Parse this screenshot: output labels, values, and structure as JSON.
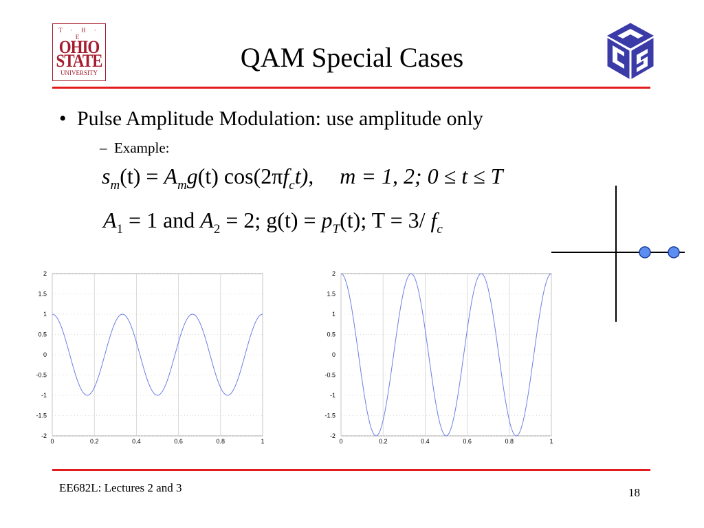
{
  "slide": {
    "title": "QAM Special Cases",
    "bullet": "Pulse Amplitude Modulation:  use amplitude only",
    "sub_bullet_marker": "–",
    "sub_bullet": "Example:",
    "equation1": {
      "s": "s",
      "m_sub": "m",
      "t_arg": "(t) = ",
      "A": "A",
      "A_sub": "m",
      "g": "g",
      "g_arg": "(t) cos",
      "cos_arg_open": "(2π",
      "f": "f",
      "f_sub": "c",
      "cos_arg_close": "t),",
      "range": "m = 1, 2; 0 ≤ t ≤ T"
    },
    "equation2": {
      "A1": "A",
      "A1_sub": "1",
      "A1_val": " = 1 and ",
      "A2": "A",
      "A2_sub": "2",
      "A2_val": " = 2; g(t) = ",
      "p": "p",
      "p_sub": "T",
      "rest": "(t); T = 3/ ",
      "fc": "f",
      "fc_sub": "c"
    },
    "footer_left": "EE682L: Lectures 2 and 3",
    "page_number": "18"
  },
  "logos": {
    "osu": {
      "line1": "T · H · E",
      "line2": "OHIO",
      "line3": "STATE",
      "line4": "UNIVERSITY",
      "color": "#a61c2e"
    },
    "cse": {
      "icon": "cse-cube-logo-icon",
      "color": "#3b3ba8"
    }
  },
  "colors": {
    "rule": "#e31a1c",
    "curve": "#6b7fe6",
    "constellation_point": "#5b8ef0"
  },
  "constellation": {
    "points": [
      1,
      2
    ]
  },
  "chart_data": [
    {
      "type": "line",
      "title": "",
      "xlabel": "",
      "ylabel": "",
      "xlim": [
        0,
        1
      ],
      "ylim": [
        -2,
        2
      ],
      "x_ticks": [
        "0",
        "0.2",
        "0.4",
        "0.6",
        "0.8",
        "1"
      ],
      "y_ticks": [
        "2",
        "1.5",
        "1",
        "0.5",
        "0",
        "-0.5",
        "-1",
        "-1.5",
        "-2"
      ],
      "grid": true,
      "series": [
        {
          "function": "1*cos(2*pi*3*x)",
          "x_start": 0,
          "x_end": 1,
          "samples": 200
        }
      ]
    },
    {
      "type": "line",
      "title": "",
      "xlabel": "",
      "ylabel": "",
      "xlim": [
        0,
        1
      ],
      "ylim": [
        -2,
        2
      ],
      "x_ticks": [
        "0",
        "0.2",
        "0.4",
        "0.6",
        "0.8",
        "1"
      ],
      "y_ticks": [
        "2",
        "1.5",
        "1",
        "0.5",
        "0",
        "-0.5",
        "-1",
        "-1.5",
        "-2"
      ],
      "grid": true,
      "series": [
        {
          "function": "2*cos(2*pi*3*x)",
          "x_start": 0,
          "x_end": 1,
          "samples": 200
        }
      ]
    }
  ]
}
